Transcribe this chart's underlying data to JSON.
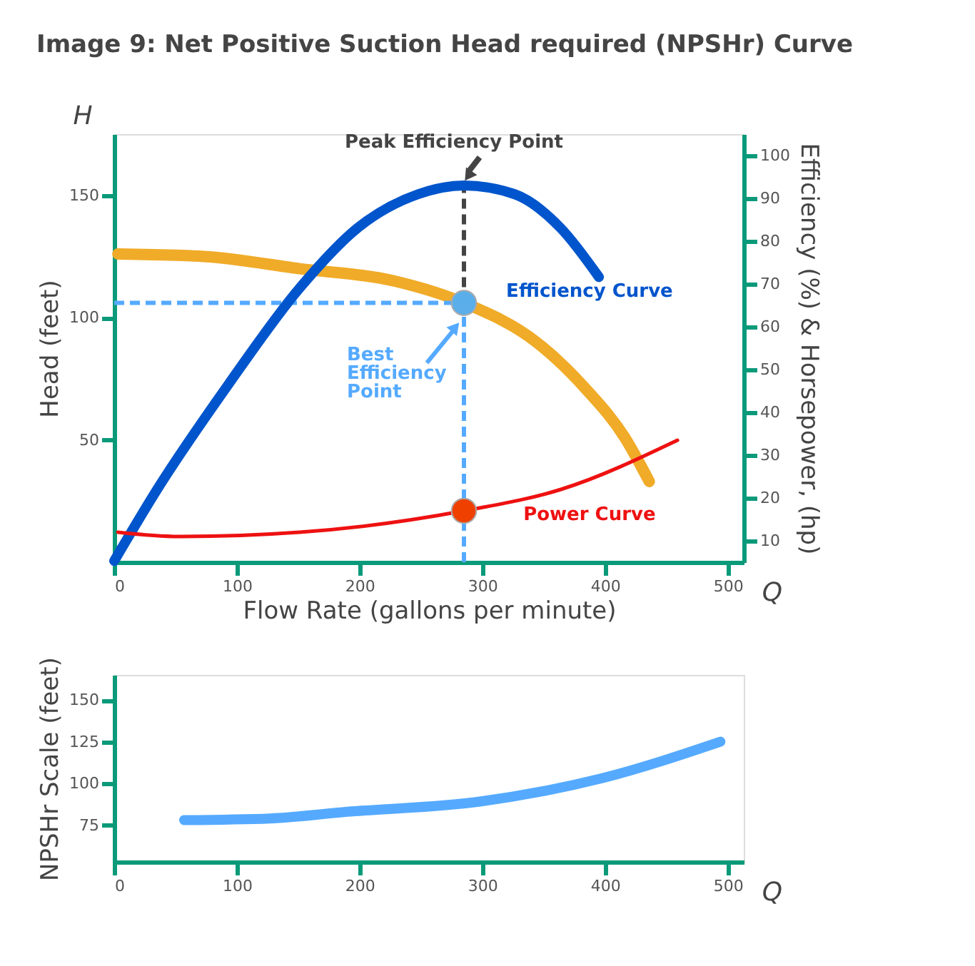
{
  "chart_data": [
    {
      "type": "line",
      "title": "Image 9: Net Positive Suction Head required (NPSHr) Curve",
      "xlabel": "Flow Rate (gallons per minute)",
      "ylabel": "Head (feet)",
      "y2label": "Efficiency (%) & Horsepower, (hp)",
      "xlim": [
        0,
        513
      ],
      "xticks": [
        0,
        100,
        200,
        300,
        400,
        500
      ],
      "ylim": [
        0,
        175
      ],
      "yticks": [
        50,
        100,
        150
      ],
      "y2lim": [
        5,
        105
      ],
      "y2ticks": [
        10,
        20,
        30,
        40,
        50,
        60,
        70,
        80,
        90,
        100
      ],
      "series": [
        {
          "color": "#f0ab28",
          "x": [
            3,
            73,
            151,
            228,
            285,
            344,
            384,
            416,
            436
          ],
          "values": [
            126,
            125,
            120,
            115,
            106,
            90,
            71,
            51,
            33
          ]
        },
        {
          "name": "Efficiency Curve",
          "axis": "y2",
          "color": "#0055cc",
          "x": [
            0,
            35,
            93,
            151,
            198,
            248,
            285,
            326,
            364,
            395
          ],
          "values": [
            5.3,
            22,
            46.5,
            69,
            83,
            91,
            93,
            91,
            83,
            71.6
          ]
        },
        {
          "name": "Power Curve",
          "axis": "y2",
          "color": "#ee1111",
          "x": [
            3,
            53,
            151,
            285,
            364,
            459
          ],
          "values": [
            12,
            11,
            12,
            17,
            22,
            33.5
          ]
        },
        {
          "type": "scatter",
          "marker": "circle",
          "x": [
            285
          ],
          "values": [
            106
          ],
          "color": "#5aafea"
        },
        {
          "type": "scatter",
          "marker": "circle",
          "axis": "y2",
          "x": [
            285
          ],
          "values": [
            17
          ],
          "color": "#f04000"
        }
      ],
      "ref_lines": [
        {
          "axis": "x",
          "value": 285,
          "color": "#55aaff",
          "line_style": "dashed"
        },
        {
          "axis": "x",
          "value": 285,
          "color": "#444444",
          "line_style": "dashed"
        },
        {
          "axis": "y",
          "value": 106,
          "color": "#55aaff",
          "line_style": "dashed"
        }
      ],
      "annotations": [
        "H",
        "Q",
        {
          "text": "Best Efficiency Point",
          "x": 285,
          "y": 106
        },
        {
          "text": "Peak Efficiency Point",
          "x": 285,
          "y": 155
        }
      ],
      "grid": false,
      "marker": "none",
      "line_style": "solid"
    },
    {
      "type": "line",
      "ylabel": "NPSHr Scale (feet)",
      "xlim": [
        0,
        513
      ],
      "xticks": [
        0,
        100,
        200,
        300,
        400,
        500
      ],
      "ylim": [
        53,
        165
      ],
      "yticks": [
        75,
        100,
        125,
        150
      ],
      "series": [
        {
          "color": "#55aaff",
          "x": [
            57,
            127,
            190,
            297,
            397,
            494
          ],
          "values": [
            78,
            79,
            83,
            89,
            103,
            125
          ]
        }
      ],
      "annotations": [
        "Q"
      ],
      "grid": false,
      "marker": "none",
      "line_style": "solid"
    }
  ]
}
